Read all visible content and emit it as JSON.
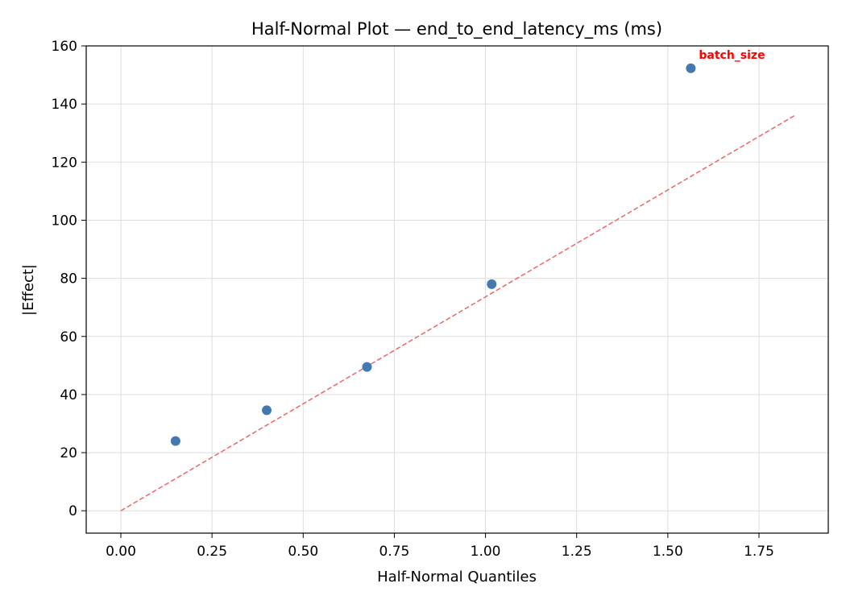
{
  "chart_data": {
    "type": "scatter",
    "title": "Half-Normal Plot — end_to_end_latency_ms (ms)",
    "xlabel": "Half-Normal Quantiles",
    "ylabel": "|Effect|",
    "xlim": [
      -0.095,
      1.94
    ],
    "ylim": [
      -7.7,
      160
    ],
    "xticks": [
      "0.00",
      "0.25",
      "0.50",
      "0.75",
      "1.00",
      "1.25",
      "1.50",
      "1.75"
    ],
    "yticks": [
      "0",
      "20",
      "40",
      "60",
      "80",
      "100",
      "120",
      "140",
      "160"
    ],
    "grid": true,
    "points": [
      {
        "x": 0.15,
        "y": 24.0
      },
      {
        "x": 0.4,
        "y": 34.6
      },
      {
        "x": 0.675,
        "y": 49.5
      },
      {
        "x": 1.017,
        "y": 78.0
      },
      {
        "x": 1.563,
        "y": 152.3
      }
    ],
    "reference_line": {
      "x": [
        0.0,
        1.85
      ],
      "y": [
        0.0,
        136.2
      ],
      "style": "dashed",
      "color": "#ee6666"
    },
    "annotations": [
      {
        "text": "batch_size",
        "x": 1.563,
        "y": 152.3,
        "color": "#ff0000"
      }
    ],
    "colors": {
      "points": "#4479b0",
      "reference_line": "#ee6666",
      "annotation": "#ff0000"
    }
  }
}
